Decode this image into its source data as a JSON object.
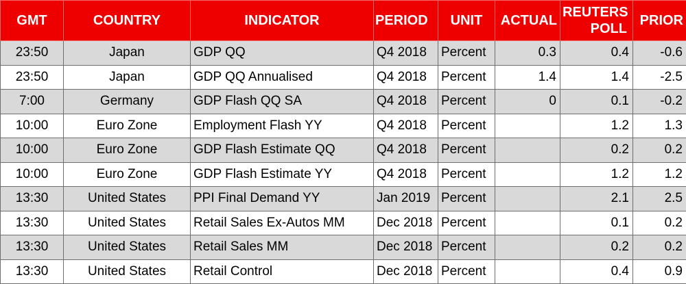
{
  "headers": {
    "gmt": "GMT",
    "country": "COUNTRY",
    "indicator": "INDICATOR",
    "period": "PERIOD",
    "unit": "UNIT",
    "actual": "ACTUAL",
    "poll_line1": "REUTERS",
    "poll_line2": "POLL",
    "prior": "PRIOR"
  },
  "rows": [
    {
      "gmt": "23:50",
      "country": "Japan",
      "indicator": "GDP QQ",
      "period": "Q4 2018",
      "unit": "Percent",
      "actual": "0.3",
      "poll": "0.4",
      "prior": "-0.6"
    },
    {
      "gmt": "23:50",
      "country": "Japan",
      "indicator": "GDP QQ Annualised",
      "period": "Q4 2018",
      "unit": "Percent",
      "actual": "1.4",
      "poll": "1.4",
      "prior": "-2.5"
    },
    {
      "gmt": "7:00",
      "country": "Germany",
      "indicator": "GDP Flash QQ SA",
      "period": "Q4 2018",
      "unit": "Percent",
      "actual": "0",
      "poll": "0.1",
      "prior": "-0.2"
    },
    {
      "gmt": "10:00",
      "country": "Euro Zone",
      "indicator": "Employment Flash YY",
      "period": "Q4 2018",
      "unit": "Percent",
      "actual": "",
      "poll": "1.2",
      "prior": "1.3"
    },
    {
      "gmt": "10:00",
      "country": "Euro Zone",
      "indicator": "GDP Flash Estimate QQ",
      "period": "Q4 2018",
      "unit": "Percent",
      "actual": "",
      "poll": "0.2",
      "prior": "0.2"
    },
    {
      "gmt": "10:00",
      "country": "Euro Zone",
      "indicator": "GDP Flash Estimate YY",
      "period": "Q4 2018",
      "unit": "Percent",
      "actual": "",
      "poll": "1.2",
      "prior": "1.2"
    },
    {
      "gmt": "13:30",
      "country": "United States",
      "indicator": "PPI Final Demand YY",
      "period": "Jan 2019",
      "unit": "Percent",
      "actual": "",
      "poll": "2.1",
      "prior": "2.5"
    },
    {
      "gmt": "13:30",
      "country": "United States",
      "indicator": "Retail Sales Ex-Autos MM",
      "period": "Dec 2018",
      "unit": "Percent",
      "actual": "",
      "poll": "0.1",
      "prior": "0.2"
    },
    {
      "gmt": "13:30",
      "country": "United States",
      "indicator": "Retail Sales MM",
      "period": "Dec 2018",
      "unit": "Percent",
      "actual": "",
      "poll": "0.2",
      "prior": "0.2"
    },
    {
      "gmt": "13:30",
      "country": "United States",
      "indicator": "Retail Control",
      "period": "Dec 2018",
      "unit": "Percent",
      "actual": "",
      "poll": "0.4",
      "prior": "0.9"
    }
  ],
  "colors": {
    "header_bg": "#ee0000",
    "header_text": "#ffffff",
    "band": "#d9d9d9"
  }
}
